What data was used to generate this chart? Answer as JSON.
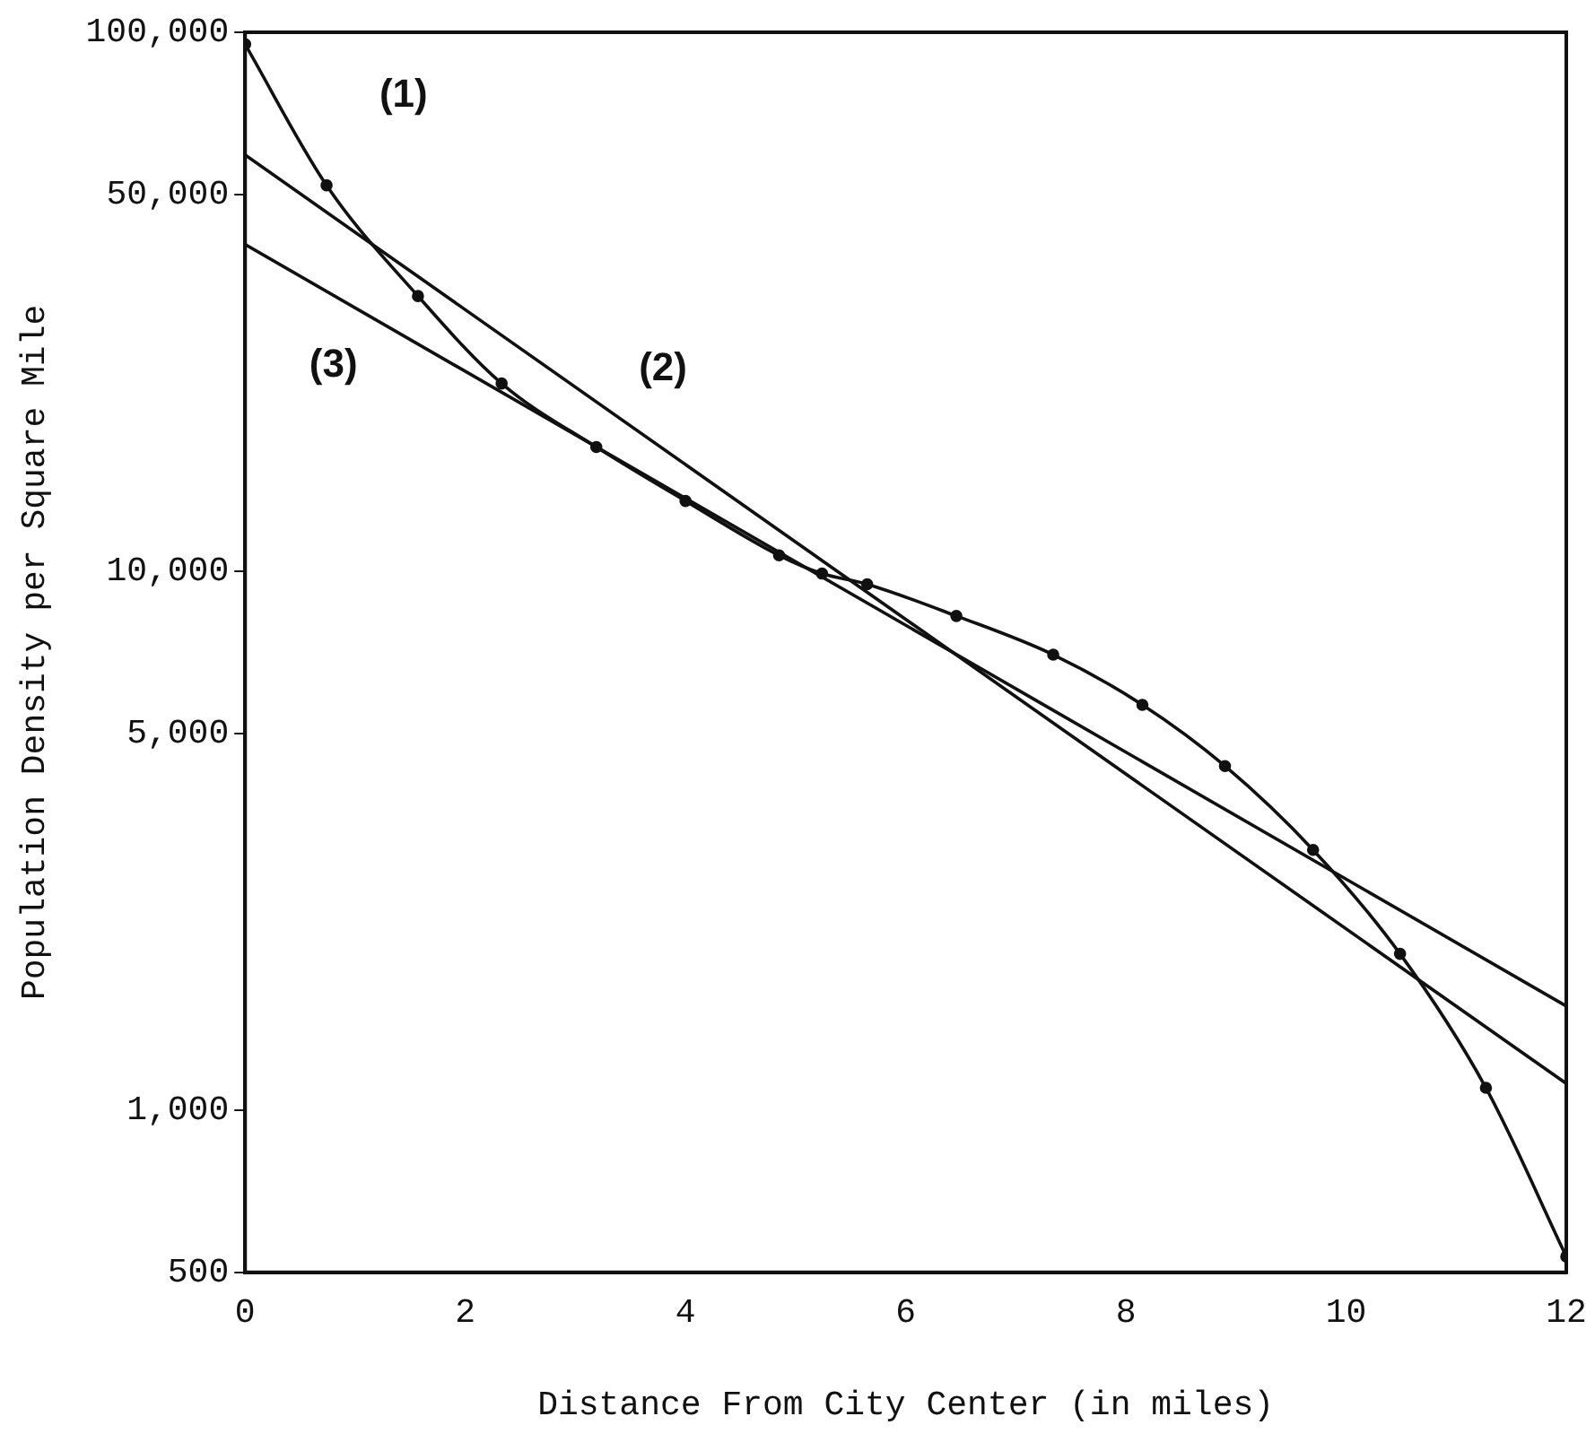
{
  "chart_data": {
    "type": "line",
    "xlabel": "Distance From City Center (in miles)",
    "ylabel": "Population Density per Square Mile",
    "log": "y",
    "grid": false,
    "legend": false,
    "xlim": [
      0,
      12
    ],
    "xticks": [
      0,
      2,
      4,
      6,
      8,
      10,
      12
    ],
    "ylim": [
      500,
      100000
    ],
    "yticks": [
      {
        "value": 500,
        "label": "500"
      },
      {
        "value": 1000,
        "label": "1,000"
      },
      {
        "value": 5000,
        "label": "5,000"
      },
      {
        "value": 10000,
        "label": "10,000"
      },
      {
        "value": 50000,
        "label": "50,000"
      },
      {
        "value": 100000,
        "label": "100,000"
      }
    ],
    "series": [
      {
        "name": "(1)",
        "color": "#111111",
        "marker": "circle",
        "x": [
          0,
          0.74,
          1.57,
          2.33,
          3.19,
          4.0,
          4.85,
          5.24,
          5.65,
          6.46,
          7.34,
          8.15,
          8.9,
          9.7,
          10.49,
          11.27,
          12
        ],
        "values": [
          95000,
          52000,
          32400,
          22300,
          17000,
          13500,
          10700,
          9900,
          9460,
          8260,
          7000,
          5650,
          4350,
          3040,
          1950,
          1100,
          535
        ]
      },
      {
        "name": "(2)",
        "color": "#111111",
        "marker": "none",
        "x": [
          0,
          12
        ],
        "values": [
          59200,
          1120
        ]
      },
      {
        "name": "(3)",
        "color": "#111111",
        "marker": "none",
        "x": [
          0,
          12
        ],
        "values": [
          40400,
          1560
        ]
      }
    ]
  }
}
